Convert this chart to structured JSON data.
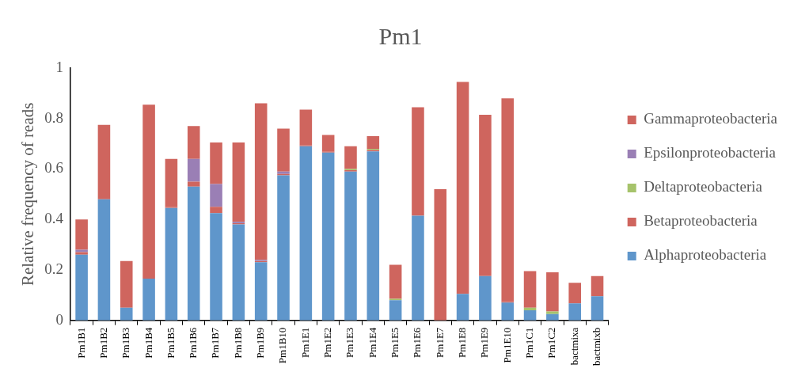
{
  "chart_data": {
    "type": "bar",
    "title": "Pm1",
    "ylabel": "Relative frequency of reads",
    "categories": [
      "Pm1B1",
      "Pm1B2",
      "Pm1B3",
      "Pm1B4",
      "Pm1B5",
      "Pm1B6",
      "Pm1B7",
      "Pm1B8",
      "Pm1B9",
      "Pm1B10",
      "Pm1E1",
      "Pm1E2",
      "Pm1E3",
      "Pm1E4",
      "Pm1E5",
      "Pm1E6",
      "Pm1E7",
      "Pm1E8",
      "Pm1E9",
      "Pm1E10",
      "Pm1C1",
      "Pm1C2",
      "bactmixa",
      "bactmixb"
    ],
    "stacked": true,
    "legend": "right",
    "ylim": [
      0,
      1
    ],
    "yticks": [
      0,
      0.2,
      0.4,
      0.6,
      0.8,
      1
    ],
    "series": [
      {
        "name": "Alphaproteobacteria",
        "color": "#5f96cb",
        "values": [
          0.26,
          0.48,
          0.05,
          0.165,
          0.445,
          0.53,
          0.425,
          0.38,
          0.23,
          0.575,
          0.69,
          0.665,
          0.59,
          0.67,
          0.08,
          0.415,
          0,
          0.105,
          0.175,
          0.07,
          0.04,
          0.025,
          0.067,
          0.095
        ]
      },
      {
        "name": "Betaproteobacteria",
        "color": "#cf655e",
        "values": [
          0.01,
          0.005,
          0,
          0,
          0.005,
          0.02,
          0.025,
          0.005,
          0.005,
          0.005,
          0.005,
          0.005,
          0.005,
          0.005,
          0,
          0,
          0,
          0.01,
          0,
          0.005,
          0,
          0,
          0,
          0
        ]
      },
      {
        "name": "Deltaproteobacteria",
        "color": "#a6c36b",
        "values": [
          0,
          0,
          0,
          0,
          0,
          0,
          0,
          0,
          0,
          0,
          0,
          0,
          0.005,
          0.005,
          0.005,
          0,
          0,
          0,
          0,
          0,
          0.01,
          0.01,
          0,
          0
        ]
      },
      {
        "name": "Epsilonproteobacteria",
        "color": "#9a7fb5",
        "values": [
          0.01,
          0,
          0,
          0,
          0,
          0.09,
          0.09,
          0.005,
          0.005,
          0.01,
          0,
          0,
          0,
          0,
          0,
          0,
          0,
          0,
          0,
          0,
          0,
          0,
          0,
          0
        ]
      },
      {
        "name": "Gammaproteobacteria",
        "color": "#cf655e",
        "values": [
          0.12,
          0.29,
          0.185,
          0.69,
          0.19,
          0.13,
          0.165,
          0.315,
          0.62,
          0.17,
          0.14,
          0.065,
          0.09,
          0.05,
          0.135,
          0.43,
          0.52,
          0.83,
          0.64,
          0.805,
          0.145,
          0.155,
          0.082,
          0.08
        ]
      }
    ]
  }
}
